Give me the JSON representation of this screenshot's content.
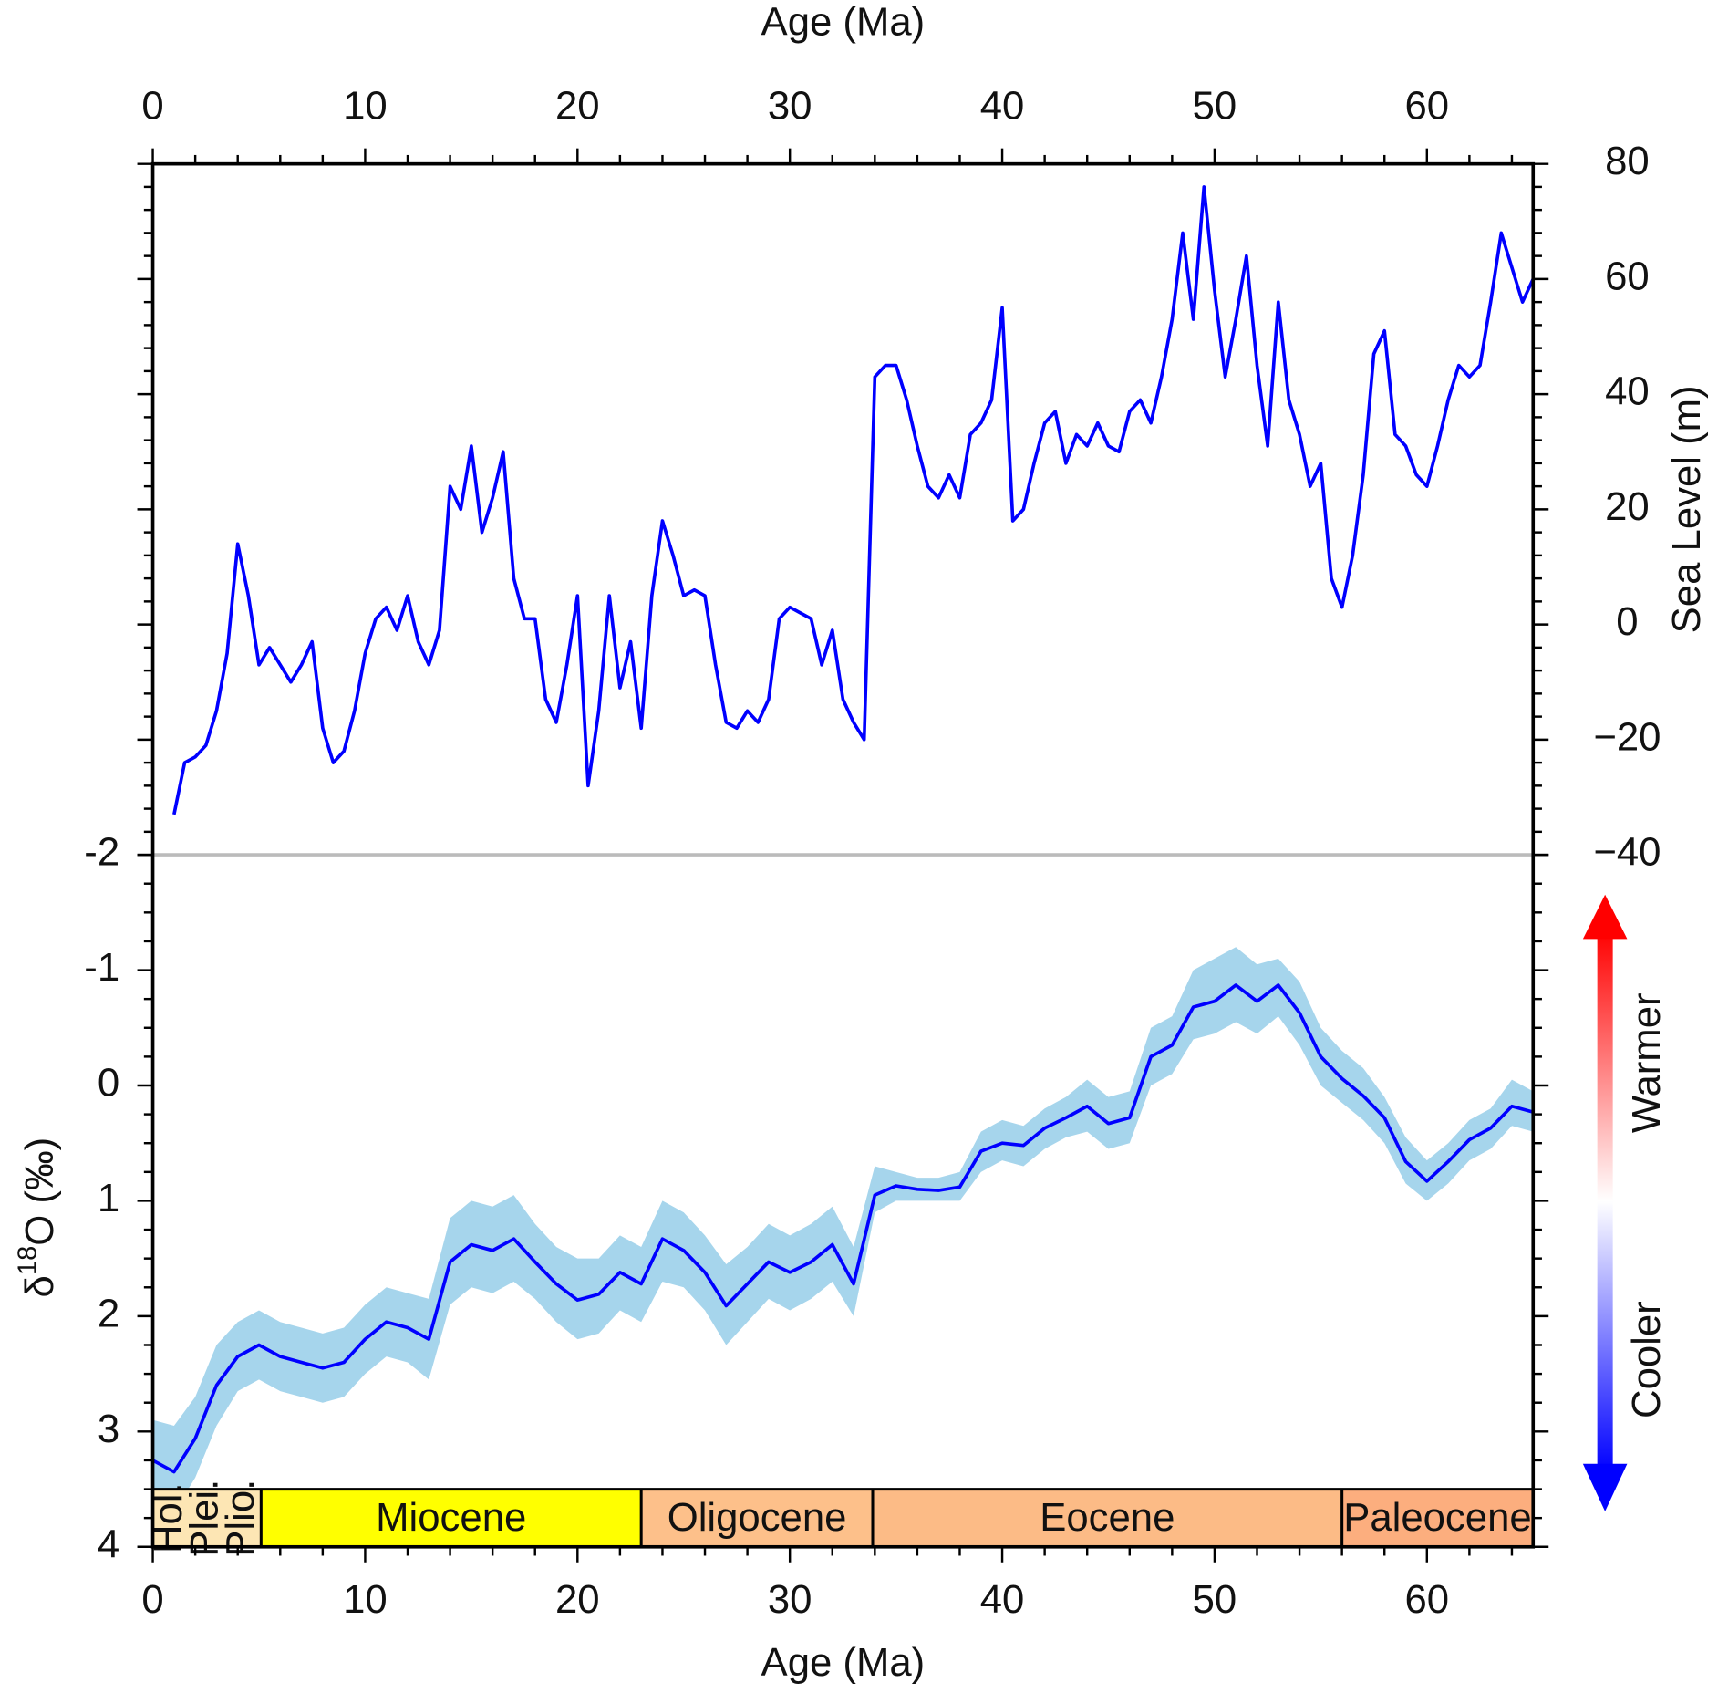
{
  "chart_data": [
    {
      "type": "line",
      "xlabel": "Age (Ma)",
      "xlim": [
        0,
        65
      ],
      "xticks": [
        0,
        10,
        20,
        30,
        40,
        50,
        60
      ],
      "y2label": "Sea Level (m)",
      "y2lim": [
        -40,
        80
      ],
      "y2ticks": [
        {
          "value": -40,
          "label": "−40"
        },
        {
          "value": -20,
          "label": "−20"
        },
        0,
        20,
        40,
        60,
        80
      ],
      "x": [
        1,
        1.5,
        2,
        2.5,
        3,
        3.5,
        4,
        4.5,
        5,
        5.5,
        6,
        6.5,
        7,
        7.5,
        8,
        8.5,
        9,
        9.5,
        10,
        10.5,
        11,
        11.5,
        12,
        12.5,
        13,
        13.5,
        14,
        14.5,
        15,
        15.5,
        16,
        16.5,
        17,
        17.5,
        18,
        18.5,
        19,
        19.5,
        20,
        20.5,
        21,
        21.5,
        22,
        22.5,
        23,
        23.5,
        24,
        24.5,
        25,
        25.5,
        26,
        26.5,
        27,
        27.5,
        28,
        28.5,
        29,
        29.5,
        30,
        30.5,
        31,
        31.5,
        32,
        32.5,
        33,
        33.5,
        34,
        34.5,
        35,
        35.5,
        36,
        36.5,
        37,
        37.5,
        38,
        38.5,
        39,
        39.5,
        40,
        40.5,
        41,
        41.5,
        42,
        42.5,
        43,
        43.5,
        44,
        44.5,
        45,
        45.5,
        46,
        46.5,
        47,
        47.5,
        48,
        48.5,
        49,
        49.5,
        50,
        50.5,
        51,
        51.5,
        52,
        52.5,
        53,
        53.5,
        54,
        54.5,
        55,
        55.5,
        56,
        56.5,
        57,
        57.5,
        58,
        58.5,
        59,
        59.5,
        60,
        60.5,
        61,
        61.5,
        62,
        62.5,
        63,
        63.5,
        64,
        64.5,
        65
      ],
      "series": [
        {
          "color": "#0000ff",
          "axis": "y2",
          "values": [
            -33,
            -24,
            -23,
            -21,
            -15,
            -5,
            14,
            5,
            -7,
            -4,
            -7,
            -10,
            -7,
            -3,
            -18,
            -24,
            -22,
            -15,
            -5,
            1,
            3,
            -1,
            5,
            -3,
            -7,
            -1,
            24,
            20,
            31,
            16,
            22,
            30,
            8,
            1,
            1,
            -13,
            -17,
            -7,
            5,
            -28,
            -15,
            5,
            -11,
            -3,
            -18,
            5,
            18,
            12,
            5,
            6,
            5,
            -7,
            -17,
            -18,
            -15,
            -17,
            -13,
            1,
            3,
            2,
            1,
            -7,
            -1,
            -13,
            -17,
            -20,
            43,
            45,
            45,
            39,
            31,
            24,
            22,
            26,
            22,
            33,
            35,
            39,
            55,
            18,
            20,
            28,
            35,
            37,
            28,
            33,
            31,
            35,
            31,
            30,
            37,
            39,
            35,
            43,
            53,
            68,
            53,
            76,
            58,
            43,
            53,
            64,
            45,
            31,
            56,
            39,
            33,
            24,
            28,
            8,
            3,
            12,
            26,
            47,
            51,
            33,
            31,
            26,
            24,
            31,
            39,
            45,
            43,
            45,
            56,
            68,
            62,
            56,
            60
          ]
        }
      ]
    },
    {
      "type": "line",
      "xlabel": "Age (Ma)",
      "xlim": [
        0,
        65
      ],
      "xticks": [
        0,
        10,
        20,
        30,
        40,
        50,
        60
      ],
      "ylabel": [
        "δ",
        "18",
        "O (‰)"
      ],
      "ylim": [
        4,
        -2
      ],
      "yticks": [
        -2,
        -1,
        0,
        1,
        2,
        3,
        4
      ],
      "x": [
        0,
        1,
        2,
        3,
        4,
        5,
        6,
        7,
        8,
        9,
        10,
        11,
        12,
        13,
        14,
        15,
        16,
        17,
        18,
        19,
        20,
        21,
        22,
        23,
        24,
        25,
        26,
        27,
        28,
        29,
        30,
        31,
        32,
        33,
        34,
        35,
        36,
        37,
        38,
        39,
        40,
        41,
        42,
        43,
        44,
        45,
        46,
        47,
        48,
        49,
        50,
        51,
        52,
        53,
        54,
        55,
        56,
        57,
        58,
        59,
        60,
        61,
        62,
        63,
        64,
        65
      ],
      "envelope": {
        "color": "#a6d5ec",
        "low": [
          2.9,
          2.95,
          2.7,
          2.25,
          2.05,
          1.95,
          2.05,
          2.1,
          2.15,
          2.1,
          1.9,
          1.75,
          1.8,
          1.85,
          1.15,
          1.0,
          1.05,
          0.95,
          1.2,
          1.4,
          1.5,
          1.5,
          1.3,
          1.4,
          1.0,
          1.1,
          1.3,
          1.55,
          1.4,
          1.2,
          1.3,
          1.2,
          1.05,
          1.4,
          0.7,
          0.75,
          0.8,
          0.8,
          0.75,
          0.4,
          0.3,
          0.35,
          0.2,
          0.1,
          -0.05,
          0.1,
          0.05,
          -0.5,
          -0.6,
          -1.0,
          -1.1,
          -1.2,
          -1.05,
          -1.1,
          -0.9,
          -0.5,
          -0.3,
          -0.15,
          0.1,
          0.45,
          0.65,
          0.5,
          0.3,
          0.2,
          -0.05,
          0.05
        ],
        "high": [
          3.6,
          3.7,
          3.4,
          2.95,
          2.65,
          2.55,
          2.65,
          2.7,
          2.75,
          2.7,
          2.5,
          2.35,
          2.4,
          2.55,
          1.9,
          1.75,
          1.8,
          1.7,
          1.85,
          2.05,
          2.2,
          2.15,
          1.95,
          2.05,
          1.7,
          1.75,
          1.95,
          2.25,
          2.05,
          1.85,
          1.95,
          1.85,
          1.7,
          2.0,
          1.1,
          1.0,
          1.0,
          1.0,
          1.0,
          0.75,
          0.65,
          0.7,
          0.55,
          0.45,
          0.4,
          0.55,
          0.5,
          0.0,
          -0.1,
          -0.4,
          -0.45,
          -0.55,
          -0.45,
          -0.6,
          -0.35,
          0.0,
          0.15,
          0.3,
          0.5,
          0.85,
          1.0,
          0.85,
          0.65,
          0.55,
          0.35,
          0.4
        ]
      },
      "series": [
        {
          "color": "#0000ff",
          "values": [
            3.25,
            3.35,
            3.06,
            2.6,
            2.35,
            2.25,
            2.35,
            2.4,
            2.45,
            2.4,
            2.2,
            2.05,
            2.1,
            2.2,
            1.53,
            1.38,
            1.43,
            1.33,
            1.53,
            1.72,
            1.86,
            1.81,
            1.62,
            1.72,
            1.33,
            1.43,
            1.62,
            1.91,
            1.72,
            1.53,
            1.62,
            1.53,
            1.38,
            1.72,
            0.95,
            0.87,
            0.9,
            0.91,
            0.88,
            0.57,
            0.5,
            0.52,
            0.37,
            0.28,
            0.18,
            0.33,
            0.28,
            -0.25,
            -0.35,
            -0.68,
            -0.73,
            -0.87,
            -0.73,
            -0.87,
            -0.63,
            -0.25,
            -0.06,
            0.09,
            0.28,
            0.66,
            0.83,
            0.66,
            0.47,
            0.37,
            0.18,
            0.23
          ]
        }
      ],
      "epochs": [
        {
          "name": "Hol.",
          "start": 0,
          "end": 0.0117,
          "color": "#fde6b4"
        },
        {
          "name": "Plei.",
          "start": 0.0117,
          "end": 2.58,
          "color": "#fde6b4"
        },
        {
          "name": "Plio.",
          "start": 2.58,
          "end": 5.1,
          "color": "#fde6b4"
        },
        {
          "name": "Miocene",
          "start": 5.1,
          "end": 23,
          "color": "#ffff00"
        },
        {
          "name": "Oligocene",
          "start": 23,
          "end": 33.9,
          "color": "#fdc08a"
        },
        {
          "name": "Eocene",
          "start": 33.9,
          "end": 56,
          "color": "#fcbb86"
        },
        {
          "name": "Paleocene",
          "start": 56,
          "end": 65,
          "color": "#fcae7e"
        }
      ],
      "annotations": [
        "Warmer",
        "Cooler"
      ]
    }
  ]
}
